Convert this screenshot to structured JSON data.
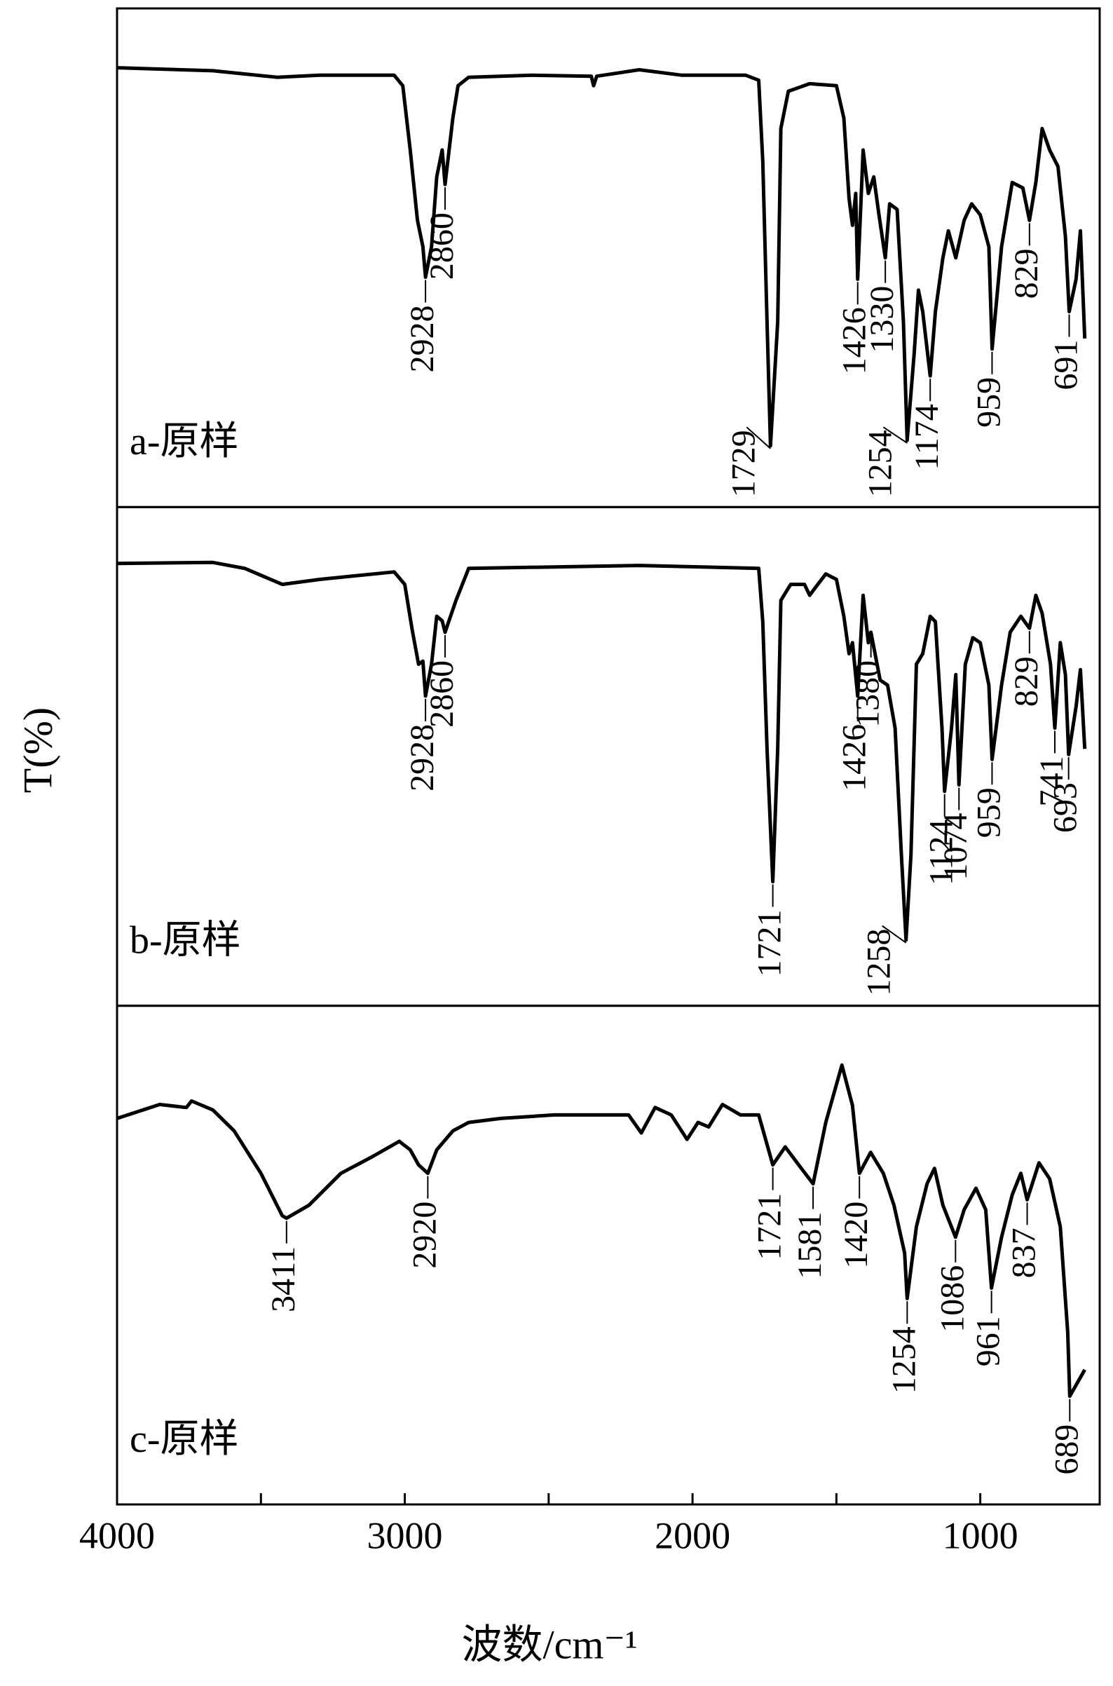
{
  "chart_data": {
    "type": "line",
    "color": "#000000",
    "xlabel": "波数/cm⁻¹",
    "ylabel": "T(%)",
    "xlim": [
      4000,
      585
    ],
    "xticks": [
      4000,
      3000,
      2000,
      1000
    ],
    "xminorticks": [
      3500,
      2500,
      1500
    ],
    "panels": [
      {
        "label": "a-原样",
        "ylim": [
          0,
          100
        ],
        "x": [
          4000,
          3667,
          3444,
          3296,
          3037,
          3007,
          2981,
          2956,
          2937,
          2928,
          2907,
          2889,
          2870,
          2860,
          2833,
          2815,
          2778,
          2556,
          2352,
          2344,
          2333,
          2185,
          2037,
          1815,
          1770,
          1756,
          1741,
          1729,
          1704,
          1693,
          1667,
          1593,
          1500,
          1474,
          1456,
          1444,
          1433,
          1426,
          1407,
          1389,
          1370,
          1352,
          1330,
          1315,
          1289,
          1267,
          1254,
          1230,
          1215,
          1200,
          1174,
          1156,
          1130,
          1111,
          1085,
          1056,
          1030,
          1000,
          970,
          959,
          926,
          889,
          852,
          829,
          807,
          785,
          759,
          730,
          704,
          691,
          667,
          652,
          637
        ],
        "values": [
          88.1,
          87.5,
          86.2,
          86.6,
          86.6,
          84.5,
          71.6,
          57.5,
          52.2,
          46.1,
          52.2,
          66.2,
          71.6,
          64.7,
          78.0,
          84.5,
          86.2,
          86.6,
          86.4,
          84.5,
          86.4,
          87.7,
          86.6,
          86.6,
          85.6,
          69.4,
          37.1,
          12.3,
          37.1,
          75.9,
          83.4,
          84.9,
          84.5,
          78.0,
          61.9,
          56.5,
          62.9,
          45.7,
          71.6,
          62.9,
          66.2,
          58.6,
          50.0,
          60.8,
          59.7,
          37.1,
          13.4,
          30.6,
          43.5,
          39.2,
          26.3,
          39.2,
          50.0,
          55.4,
          50.0,
          57.5,
          60.8,
          58.6,
          52.2,
          31.7,
          52.2,
          65.1,
          64.0,
          57.5,
          65.1,
          75.9,
          71.6,
          68.3,
          54.3,
          39.2,
          45.7,
          55.4,
          33.8
        ],
        "peaks": [
          2928,
          2860,
          1729,
          1426,
          1330,
          1254,
          1174,
          959,
          829,
          691
        ]
      },
      {
        "label": "b-原样",
        "ylim": [
          0,
          100
        ],
        "x": [
          4000,
          3667,
          3556,
          3426,
          3296,
          3037,
          3000,
          2974,
          2952,
          2937,
          2928,
          2907,
          2889,
          2870,
          2860,
          2822,
          2778,
          2185,
          1770,
          1756,
          1741,
          1721,
          1704,
          1693,
          1659,
          1611,
          1593,
          1574,
          1537,
          1500,
          1474,
          1456,
          1444,
          1426,
          1407,
          1389,
          1380,
          1348,
          1322,
          1296,
          1274,
          1258,
          1241,
          1222,
          1200,
          1174,
          1156,
          1133,
          1124,
          1100,
          1085,
          1074,
          1052,
          1026,
          1000,
          970,
          959,
          926,
          896,
          859,
          829,
          807,
          785,
          756,
          741,
          722,
          704,
          693,
          667,
          652,
          637
        ],
        "values": [
          88.7,
          88.9,
          87.7,
          84.5,
          85.5,
          87.0,
          84.5,
          75.3,
          68.5,
          69.1,
          62.1,
          68.5,
          78.1,
          77.2,
          74.9,
          81.3,
          87.7,
          88.3,
          87.7,
          77.0,
          51.5,
          24.9,
          51.5,
          81.3,
          84.5,
          84.5,
          82.3,
          83.8,
          86.6,
          85.5,
          78.1,
          70.6,
          72.8,
          62.1,
          82.3,
          72.8,
          74.9,
          65.3,
          64.3,
          55.7,
          30.2,
          13.2,
          30.2,
          68.5,
          70.6,
          78.1,
          77.0,
          55.7,
          43.0,
          55.7,
          66.4,
          44.3,
          68.5,
          73.8,
          72.8,
          64.3,
          49.4,
          64.3,
          74.9,
          78.1,
          75.7,
          82.3,
          78.7,
          68.5,
          55.7,
          72.8,
          66.4,
          50.4,
          60.0,
          67.4,
          51.5
        ],
        "peaks": [
          2928,
          2860,
          1721,
          1426,
          1380,
          1258,
          1124,
          1074,
          959,
          829,
          741,
          693
        ]
      },
      {
        "label": "c-原样",
        "ylim": [
          0,
          100
        ],
        "x": [
          4000,
          3852,
          3759,
          3741,
          3667,
          3593,
          3500,
          3426,
          3411,
          3333,
          3222,
          3111,
          3019,
          2981,
          2952,
          2920,
          2889,
          2833,
          2778,
          2667,
          2481,
          2222,
          2178,
          2130,
          2074,
          2019,
          1981,
          1944,
          1896,
          1833,
          1770,
          1721,
          1678,
          1622,
          1581,
          1537,
          1481,
          1444,
          1420,
          1381,
          1337,
          1300,
          1263,
          1254,
          1222,
          1185,
          1159,
          1130,
          1086,
          1056,
          1015,
          981,
          961,
          926,
          889,
          859,
          837,
          796,
          759,
          722,
          696,
          689,
          637
        ],
        "values": [
          77.4,
          80.2,
          79.6,
          80.9,
          79.1,
          74.9,
          66.4,
          57.9,
          57.4,
          60.0,
          66.4,
          69.8,
          72.8,
          71.1,
          68.1,
          66.4,
          71.1,
          74.9,
          76.6,
          77.4,
          78.1,
          78.1,
          74.5,
          79.6,
          78.1,
          73.2,
          76.6,
          75.7,
          80.2,
          78.1,
          78.1,
          68.1,
          71.7,
          67.4,
          64.3,
          76.6,
          88.1,
          80.0,
          66.4,
          70.6,
          66.4,
          60.0,
          50.4,
          41.3,
          55.7,
          64.3,
          67.4,
          60.0,
          53.6,
          59.1,
          63.4,
          59.1,
          43.4,
          53.6,
          62.1,
          66.4,
          61.1,
          68.5,
          65.3,
          55.7,
          34.5,
          21.7,
          27.0
        ],
        "peaks": [
          3411,
          2920,
          1721,
          1581,
          1420,
          1254,
          1086,
          961,
          837,
          689
        ]
      }
    ]
  }
}
